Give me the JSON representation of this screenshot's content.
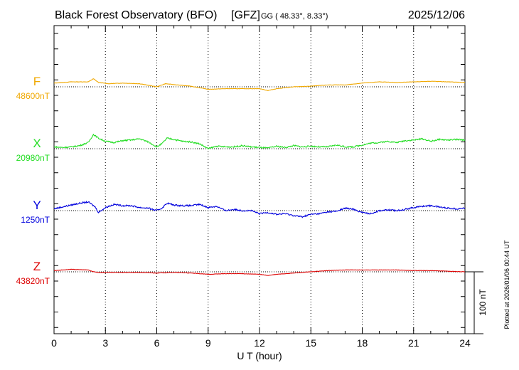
{
  "header": {
    "observatory": "Black Forest Observatory (BFO)",
    "institute": "[GFZ]",
    "coords": "GG ( 48.33°,   8.33°)",
    "date": "2025/12/06"
  },
  "plotted_note": "Plotted at 2026/01/06 00:44 UT",
  "scale_label": "100 nT",
  "chart_data": {
    "type": "line",
    "xlabel": "U T (hour)",
    "xlim": [
      0,
      24
    ],
    "xticks": [
      0,
      3,
      6,
      9,
      12,
      15,
      18,
      21,
      24
    ],
    "xtick_labels": [
      "0",
      "3",
      "6",
      "9",
      "12",
      "15",
      "18",
      "21",
      "24"
    ],
    "grid": "dotted vertical every 3 hours",
    "scale_nT": 100,
    "series": [
      {
        "name": "F",
        "baseline_label": "48600nT",
        "baseline": 48600,
        "color": "#f0a800",
        "x": [
          0,
          1,
          2,
          2.3,
          2.6,
          3.2,
          4,
          5,
          6,
          6.5,
          7.2,
          8,
          9,
          10,
          11,
          12,
          12.5,
          13,
          14,
          15,
          16,
          17,
          18,
          19,
          20,
          21,
          22,
          23,
          24
        ],
        "y": [
          48606,
          48608,
          48608,
          48613,
          48607,
          48605,
          48606,
          48605,
          48600,
          48605,
          48603,
          48601,
          48596,
          48597,
          48597,
          48597,
          48594,
          48597,
          48600,
          48601,
          48603,
          48603,
          48606,
          48608,
          48607,
          48608,
          48609,
          48608,
          48607
        ]
      },
      {
        "name": "X",
        "baseline_label": "20980nT",
        "baseline": 20980,
        "color": "#22dd22",
        "x": [
          0,
          0.5,
          1,
          1.5,
          2,
          2.3,
          2.6,
          3,
          3.5,
          4,
          4.5,
          5,
          5.5,
          6,
          6.3,
          6.6,
          7,
          7.5,
          8,
          8.5,
          9,
          9.5,
          10,
          10.5,
          11,
          11.5,
          12,
          12.5,
          13,
          13.5,
          14,
          14.5,
          15,
          15.5,
          16,
          16.5,
          17,
          17.5,
          18,
          18.5,
          19,
          19.5,
          20,
          20.5,
          21,
          21.5,
          22,
          22.5,
          23,
          23.5,
          24
        ],
        "y": [
          20983,
          20982,
          20983,
          20985,
          20990,
          21003,
          20997,
          20992,
          20990,
          20993,
          20994,
          20996,
          20991,
          20983,
          20988,
          20997,
          20995,
          20992,
          20991,
          20988,
          20980,
          20984,
          20983,
          20983,
          20985,
          20983,
          20982,
          20981,
          20984,
          20982,
          20985,
          20983,
          20984,
          20983,
          20983,
          20986,
          20983,
          20983,
          20986,
          20989,
          20990,
          20992,
          20990,
          20993,
          20994,
          20996,
          20992,
          20995,
          20994,
          20995,
          20994
        ]
      },
      {
        "name": "Y",
        "baseline_label": "1250nT",
        "baseline": 1250,
        "color": "#0000dd",
        "x": [
          0,
          0.5,
          1,
          1.5,
          2,
          2.4,
          2.6,
          3,
          3.5,
          4,
          4.5,
          5,
          5.5,
          6,
          6.3,
          6.6,
          7,
          7.5,
          8,
          8.5,
          9,
          9.5,
          10,
          10.5,
          11,
          11.5,
          12,
          12.5,
          13,
          13.5,
          14,
          14.5,
          15,
          15.5,
          16,
          16.5,
          17,
          17.5,
          18,
          18.5,
          19,
          19.5,
          20,
          20.5,
          21,
          21.5,
          22,
          22.5,
          23,
          23.5,
          24
        ],
        "y": [
          1253,
          1256,
          1259,
          1262,
          1264,
          1256,
          1247,
          1255,
          1260,
          1258,
          1258,
          1255,
          1254,
          1250,
          1254,
          1262,
          1259,
          1258,
          1258,
          1260,
          1255,
          1257,
          1250,
          1252,
          1250,
          1250,
          1245,
          1247,
          1244,
          1245,
          1242,
          1240,
          1244,
          1245,
          1248,
          1249,
          1254,
          1252,
          1247,
          1245,
          1250,
          1251,
          1250,
          1252,
          1255,
          1257,
          1258,
          1256,
          1254,
          1253,
          1254
        ]
      },
      {
        "name": "Z",
        "baseline_label": "43820nT",
        "baseline": 43820,
        "color": "#dd0000",
        "x": [
          0,
          1,
          2,
          2.3,
          2.6,
          3,
          4,
          5,
          6,
          7,
          8,
          9,
          10,
          11,
          12,
          12.5,
          13,
          14,
          15,
          16,
          17,
          18,
          19,
          20,
          21,
          22,
          23,
          24
        ],
        "y": [
          43822,
          43824,
          43823,
          43820,
          43819,
          43819,
          43819,
          43819,
          43818,
          43819,
          43818,
          43816,
          43817,
          43817,
          43816,
          43814,
          43816,
          43818,
          43820,
          43822,
          43823,
          43823,
          43823,
          43823,
          43822,
          43822,
          43821,
          43820
        ]
      }
    ]
  }
}
